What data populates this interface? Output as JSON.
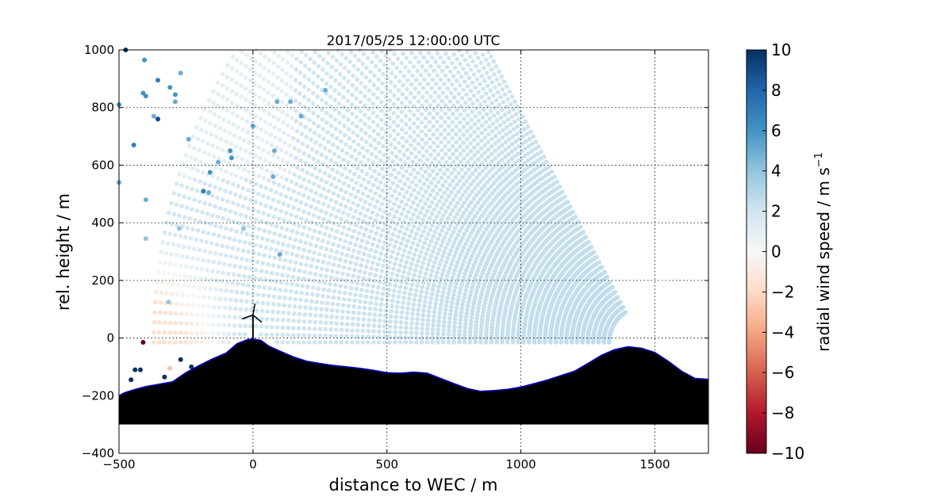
{
  "chart_data": {
    "type": "scatter",
    "title": "2017/05/25 12:00:00 UTC",
    "xlabel": "distance to WEC / m",
    "ylabel": "rel. height / m",
    "xlim": [
      -500,
      1700
    ],
    "ylim": [
      -400,
      1000
    ],
    "xticks": [
      "−500",
      "0",
      "500",
      "1000",
      "1500"
    ],
    "yticks": [
      "−400",
      "−200",
      "0",
      "200",
      "400",
      "600",
      "800",
      "1000"
    ],
    "grid": true,
    "colorbar": {
      "label": "radial wind speed / m s",
      "label_exponent": "−1",
      "range": [
        -10,
        10
      ],
      "ticks": [
        "−10",
        "−8",
        "−6",
        "−4",
        "−2",
        "0",
        "2",
        "4",
        "6",
        "8",
        "10"
      ],
      "colormap": [
        "#67001f",
        "#b2182b",
        "#d6604d",
        "#f4a582",
        "#fddbc7",
        "#f7f7f7",
        "#d1e5f0",
        "#92c5de",
        "#4393c3",
        "#2166ac",
        "#053061"
      ]
    },
    "scan": {
      "lidar_position": [
        1450,
        -15
      ],
      "range_gates_m": {
        "start": 120,
        "step": 20,
        "count": 86
      },
      "elevation_deg": {
        "start": 0,
        "step": 1.1,
        "count": 56
      },
      "wind_field": {
        "far_field_mps": 1.8,
        "near_lidar_mps": 2.6,
        "lower_left_reverse_mps": -1.6,
        "outliers": [
          {
            "x": -410,
            "y": -15,
            "v": -10
          },
          {
            "x": -440,
            "y": -110,
            "v": 10
          },
          {
            "x": -420,
            "y": -110,
            "v": 10
          },
          {
            "x": -455,
            "y": -145,
            "v": 10
          },
          {
            "x": -330,
            "y": -135,
            "v": 10
          },
          {
            "x": -310,
            "y": -105,
            "v": -3
          },
          {
            "x": -270,
            "y": -75,
            "v": 10
          },
          {
            "x": -230,
            "y": -100,
            "v": 10
          },
          {
            "x": -405,
            "y": 965,
            "v": 6
          },
          {
            "x": -355,
            "y": 895,
            "v": 7
          },
          {
            "x": -410,
            "y": 850,
            "v": 6
          },
          {
            "x": -355,
            "y": 760,
            "v": 9
          },
          {
            "x": -445,
            "y": 670,
            "v": 7
          },
          {
            "x": -270,
            "y": 920,
            "v": 5
          },
          {
            "x": -310,
            "y": 870,
            "v": 6
          },
          {
            "x": -290,
            "y": 820,
            "v": 5
          },
          {
            "x": -500,
            "y": 810,
            "v": 6
          },
          {
            "x": -370,
            "y": 770,
            "v": 5
          },
          {
            "x": -400,
            "y": 840,
            "v": 6
          },
          {
            "x": -290,
            "y": 845,
            "v": 6
          },
          {
            "x": -160,
            "y": 575,
            "v": 6
          },
          {
            "x": -85,
            "y": 650,
            "v": 6
          },
          {
            "x": -130,
            "y": 610,
            "v": 5
          },
          {
            "x": -185,
            "y": 510,
            "v": 7
          },
          {
            "x": -500,
            "y": 540,
            "v": 5
          },
          {
            "x": -400,
            "y": 480,
            "v": 5
          },
          {
            "x": -165,
            "y": 505,
            "v": 5
          },
          {
            "x": -240,
            "y": 690,
            "v": 5
          },
          {
            "x": -80,
            "y": 625,
            "v": 6
          },
          {
            "x": 80,
            "y": 650,
            "v": 5
          },
          {
            "x": 75,
            "y": 560,
            "v": 5
          },
          {
            "x": 90,
            "y": 820,
            "v": 5
          },
          {
            "x": 140,
            "y": 820,
            "v": 5
          },
          {
            "x": 270,
            "y": 860,
            "v": 5
          },
          {
            "x": 180,
            "y": 770,
            "v": 5
          },
          {
            "x": 100,
            "y": 290,
            "v": 5
          },
          {
            "x": 0,
            "y": 735,
            "v": 5
          },
          {
            "x": -35,
            "y": 380,
            "v": 4
          },
          {
            "x": -315,
            "y": 125,
            "v": 4
          },
          {
            "x": -400,
            "y": 345,
            "v": 4
          },
          {
            "x": -275,
            "y": 380,
            "v": 4
          },
          {
            "x": -475,
            "y": 1000,
            "v": 10
          }
        ]
      }
    },
    "terrain": {
      "fill": "#000000",
      "outline": "#0000cc",
      "base_y": -300,
      "profile": [
        {
          "x": -500,
          "y": -200
        },
        {
          "x": -480,
          "y": -190
        },
        {
          "x": -440,
          "y": -178
        },
        {
          "x": -400,
          "y": -168
        },
        {
          "x": -350,
          "y": -160
        },
        {
          "x": -300,
          "y": -152
        },
        {
          "x": -250,
          "y": -120
        },
        {
          "x": -200,
          "y": -95
        },
        {
          "x": -150,
          "y": -72
        },
        {
          "x": -100,
          "y": -52
        },
        {
          "x": -60,
          "y": -20
        },
        {
          "x": -20,
          "y": -5
        },
        {
          "x": 0,
          "y": -3
        },
        {
          "x": 30,
          "y": -8
        },
        {
          "x": 60,
          "y": -28
        },
        {
          "x": 100,
          "y": -45
        },
        {
          "x": 150,
          "y": -65
        },
        {
          "x": 200,
          "y": -80
        },
        {
          "x": 250,
          "y": -88
        },
        {
          "x": 300,
          "y": -95
        },
        {
          "x": 350,
          "y": -100
        },
        {
          "x": 400,
          "y": -105
        },
        {
          "x": 450,
          "y": -112
        },
        {
          "x": 500,
          "y": -120
        },
        {
          "x": 550,
          "y": -122
        },
        {
          "x": 600,
          "y": -118
        },
        {
          "x": 650,
          "y": -122
        },
        {
          "x": 700,
          "y": -140
        },
        {
          "x": 750,
          "y": -158
        },
        {
          "x": 800,
          "y": -175
        },
        {
          "x": 850,
          "y": -185
        },
        {
          "x": 900,
          "y": -182
        },
        {
          "x": 950,
          "y": -178
        },
        {
          "x": 1000,
          "y": -170
        },
        {
          "x": 1050,
          "y": -158
        },
        {
          "x": 1100,
          "y": -145
        },
        {
          "x": 1150,
          "y": -130
        },
        {
          "x": 1200,
          "y": -115
        },
        {
          "x": 1250,
          "y": -88
        },
        {
          "x": 1300,
          "y": -60
        },
        {
          "x": 1350,
          "y": -40
        },
        {
          "x": 1400,
          "y": -30
        },
        {
          "x": 1450,
          "y": -35
        },
        {
          "x": 1500,
          "y": -50
        },
        {
          "x": 1550,
          "y": -80
        },
        {
          "x": 1600,
          "y": -115
        },
        {
          "x": 1650,
          "y": -140
        },
        {
          "x": 1700,
          "y": -143
        }
      ]
    },
    "turbine": {
      "hub_x": 0,
      "hub_height": 80,
      "rotor_radius": 40
    }
  }
}
